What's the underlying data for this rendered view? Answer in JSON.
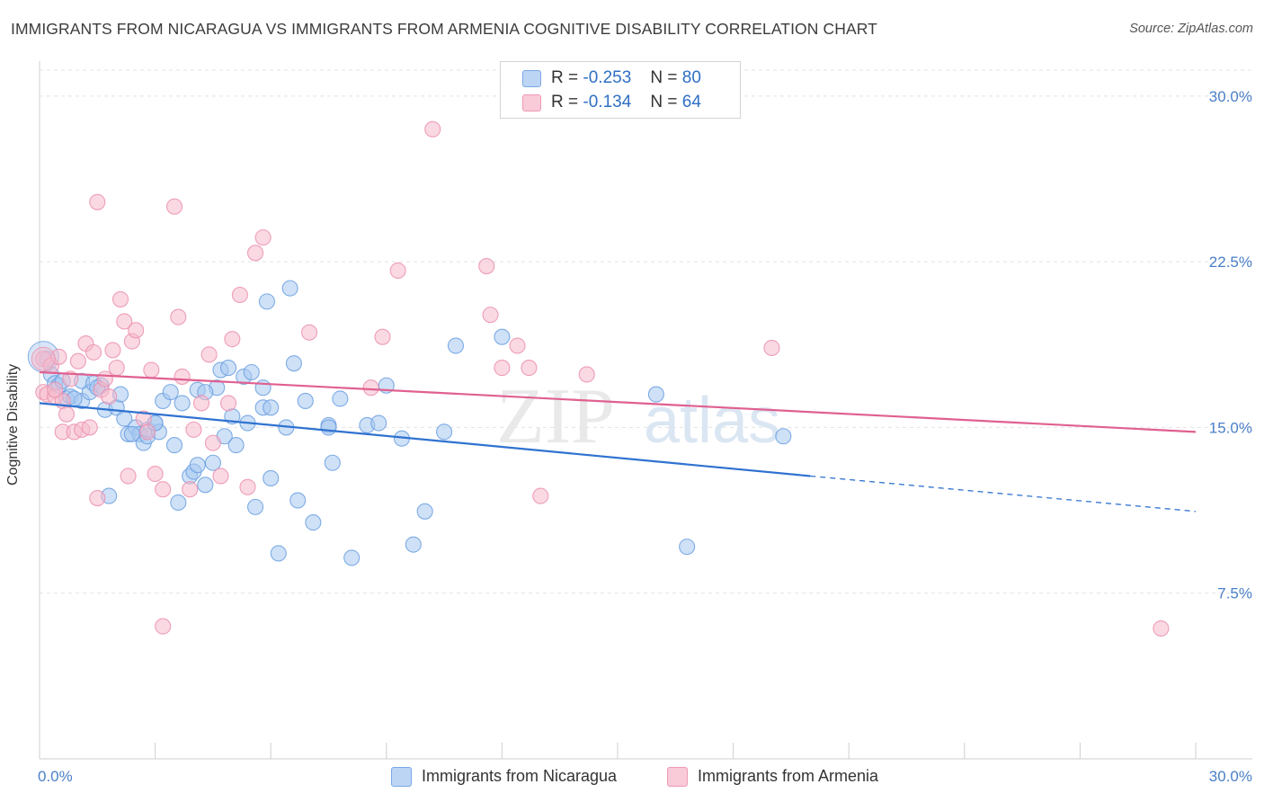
{
  "title": "IMMIGRANTS FROM NICARAGUA VS IMMIGRANTS FROM ARMENIA COGNITIVE DISABILITY CORRELATION CHART",
  "source": "Source: ZipAtlas.com",
  "watermark": {
    "zip": "ZIP",
    "atlas": "atlas"
  },
  "legend": {
    "rows": [
      {
        "r_label": "R =",
        "r_value": "-0.253",
        "n_label": "N =",
        "n_value": "80"
      },
      {
        "r_label": "R =",
        "r_value": "-0.134",
        "n_label": "N =",
        "n_value": "64"
      }
    ]
  },
  "colors": {
    "blue_fill": "#a8c8f0",
    "blue_stroke": "#6a9fe0",
    "blue_line": "#2f72d0",
    "pink_fill": "#f6b9cc",
    "pink_stroke": "#eb8fae",
    "pink_line": "#e06090",
    "axis_text": "#4a7fc8",
    "grid": "#e3e3e3"
  },
  "chart_data": {
    "type": "scatter",
    "title": "IMMIGRANTS FROM NICARAGUA VS IMMIGRANTS FROM ARMENIA COGNITIVE DISABILITY CORRELATION CHART",
    "xlabel": "",
    "ylabel": "Cognitive Disability",
    "xlim": [
      0,
      30
    ],
    "ylim": [
      0,
      31.5
    ],
    "x_tick_labels": [
      "0.0%",
      "30.0%"
    ],
    "y_ticks": [
      7.5,
      15.0,
      22.5,
      30.0
    ],
    "y_tick_labels": [
      "7.5%",
      "15.0%",
      "22.5%",
      "30.0%"
    ],
    "grid": "horizontal dashed",
    "legend_position": "top-center",
    "series": [
      {
        "name": "Immigrants from Nicaragua",
        "color": "#a8c8f0",
        "trend": {
          "x0": 0.0,
          "y0": 16.1,
          "x1": 20.0,
          "y1": 12.8,
          "dashed_to_x": 30.0,
          "dashed_to_y": 11.2
        },
        "points": [
          [
            0.2,
            18.1
          ],
          [
            0.3,
            17.4
          ],
          [
            0.4,
            17.0
          ],
          [
            0.5,
            16.9
          ],
          [
            0.6,
            17.1
          ],
          [
            0.7,
            16.3
          ],
          [
            0.8,
            16.4
          ],
          [
            1.1,
            16.2
          ],
          [
            1.1,
            17.1
          ],
          [
            1.3,
            16.6
          ],
          [
            1.4,
            17.0
          ],
          [
            1.6,
            16.9
          ],
          [
            1.7,
            15.8
          ],
          [
            1.8,
            11.9
          ],
          [
            2.0,
            15.9
          ],
          [
            2.1,
            16.5
          ],
          [
            2.2,
            15.4
          ],
          [
            2.3,
            14.7
          ],
          [
            2.5,
            15.0
          ],
          [
            2.6,
            14.7
          ],
          [
            2.7,
            14.3
          ],
          [
            2.8,
            14.6
          ],
          [
            2.8,
            14.9
          ],
          [
            3.0,
            15.2
          ],
          [
            3.1,
            14.8
          ],
          [
            3.2,
            16.2
          ],
          [
            3.4,
            16.6
          ],
          [
            3.5,
            14.2
          ],
          [
            3.6,
            11.6
          ],
          [
            3.7,
            16.1
          ],
          [
            3.9,
            12.8
          ],
          [
            4.0,
            13.0
          ],
          [
            4.1,
            16.7
          ],
          [
            4.1,
            13.3
          ],
          [
            4.3,
            12.4
          ],
          [
            4.5,
            13.4
          ],
          [
            4.6,
            16.8
          ],
          [
            4.7,
            17.6
          ],
          [
            4.8,
            14.6
          ],
          [
            4.9,
            17.7
          ],
          [
            5.0,
            15.5
          ],
          [
            5.1,
            14.2
          ],
          [
            5.3,
            17.3
          ],
          [
            5.4,
            15.2
          ],
          [
            5.5,
            17.5
          ],
          [
            5.6,
            11.4
          ],
          [
            5.8,
            15.9
          ],
          [
            5.8,
            16.8
          ],
          [
            5.9,
            20.7
          ],
          [
            6.0,
            12.7
          ],
          [
            6.2,
            9.3
          ],
          [
            6.4,
            15.0
          ],
          [
            6.5,
            21.3
          ],
          [
            6.6,
            17.9
          ],
          [
            6.7,
            11.7
          ],
          [
            6.9,
            16.2
          ],
          [
            7.1,
            10.7
          ],
          [
            7.5,
            15.1
          ],
          [
            7.6,
            13.4
          ],
          [
            7.8,
            16.3
          ],
          [
            8.1,
            9.1
          ],
          [
            8.5,
            15.1
          ],
          [
            8.8,
            15.2
          ],
          [
            9.0,
            16.9
          ],
          [
            9.4,
            14.5
          ],
          [
            9.7,
            9.7
          ],
          [
            10.0,
            11.2
          ],
          [
            10.5,
            14.8
          ],
          [
            10.8,
            18.7
          ],
          [
            12.0,
            19.1
          ],
          [
            16.0,
            16.5
          ],
          [
            16.8,
            9.6
          ],
          [
            19.3,
            14.6
          ],
          [
            2.4,
            14.7
          ],
          [
            1.5,
            16.8
          ],
          [
            4.3,
            16.6
          ],
          [
            3.0,
            15.2
          ],
          [
            6.0,
            15.9
          ],
          [
            0.9,
            16.3
          ],
          [
            7.5,
            15.0
          ]
        ]
      },
      {
        "name": "Immigrants from Armenia",
        "color": "#f6b9cc",
        "trend": {
          "x0": 0.0,
          "y0": 17.5,
          "x1": 30.0,
          "y1": 14.8
        },
        "points": [
          [
            0.1,
            18.1
          ],
          [
            0.1,
            16.6
          ],
          [
            0.2,
            16.5
          ],
          [
            0.3,
            17.8
          ],
          [
            0.4,
            16.4
          ],
          [
            0.5,
            18.2
          ],
          [
            0.6,
            14.8
          ],
          [
            0.6,
            16.2
          ],
          [
            0.7,
            15.6
          ],
          [
            0.8,
            17.2
          ],
          [
            0.9,
            14.8
          ],
          [
            1.0,
            18.0
          ],
          [
            1.1,
            14.9
          ],
          [
            1.2,
            18.8
          ],
          [
            1.3,
            15.0
          ],
          [
            1.4,
            18.4
          ],
          [
            1.5,
            11.8
          ],
          [
            1.5,
            25.2
          ],
          [
            1.6,
            16.7
          ],
          [
            1.7,
            17.2
          ],
          [
            1.8,
            16.4
          ],
          [
            1.9,
            18.5
          ],
          [
            2.0,
            17.7
          ],
          [
            2.1,
            20.8
          ],
          [
            2.2,
            19.8
          ],
          [
            2.3,
            12.8
          ],
          [
            2.4,
            18.9
          ],
          [
            2.5,
            19.4
          ],
          [
            2.7,
            15.4
          ],
          [
            2.8,
            14.8
          ],
          [
            2.9,
            17.6
          ],
          [
            3.0,
            12.9
          ],
          [
            3.2,
            12.2
          ],
          [
            3.2,
            6.0
          ],
          [
            3.5,
            25.0
          ],
          [
            3.6,
            20.0
          ],
          [
            3.7,
            17.3
          ],
          [
            3.9,
            12.2
          ],
          [
            4.0,
            14.9
          ],
          [
            4.2,
            16.1
          ],
          [
            4.4,
            18.3
          ],
          [
            4.5,
            14.3
          ],
          [
            4.7,
            12.8
          ],
          [
            4.9,
            16.1
          ],
          [
            5.0,
            19.0
          ],
          [
            5.2,
            21.0
          ],
          [
            5.4,
            12.3
          ],
          [
            5.6,
            22.9
          ],
          [
            5.8,
            23.6
          ],
          [
            7.0,
            19.3
          ],
          [
            8.6,
            16.8
          ],
          [
            8.9,
            19.1
          ],
          [
            9.3,
            22.1
          ],
          [
            10.2,
            28.5
          ],
          [
            11.6,
            22.3
          ],
          [
            11.7,
            20.1
          ],
          [
            12.0,
            17.7
          ],
          [
            12.4,
            18.7
          ],
          [
            12.7,
            17.7
          ],
          [
            13.0,
            11.9
          ],
          [
            14.2,
            17.4
          ],
          [
            19.0,
            18.6
          ],
          [
            29.1,
            5.9
          ],
          [
            0.4,
            16.7
          ]
        ]
      }
    ]
  },
  "bottom_legend": [
    "Immigrants from Nicaragua",
    "Immigrants from Armenia"
  ]
}
